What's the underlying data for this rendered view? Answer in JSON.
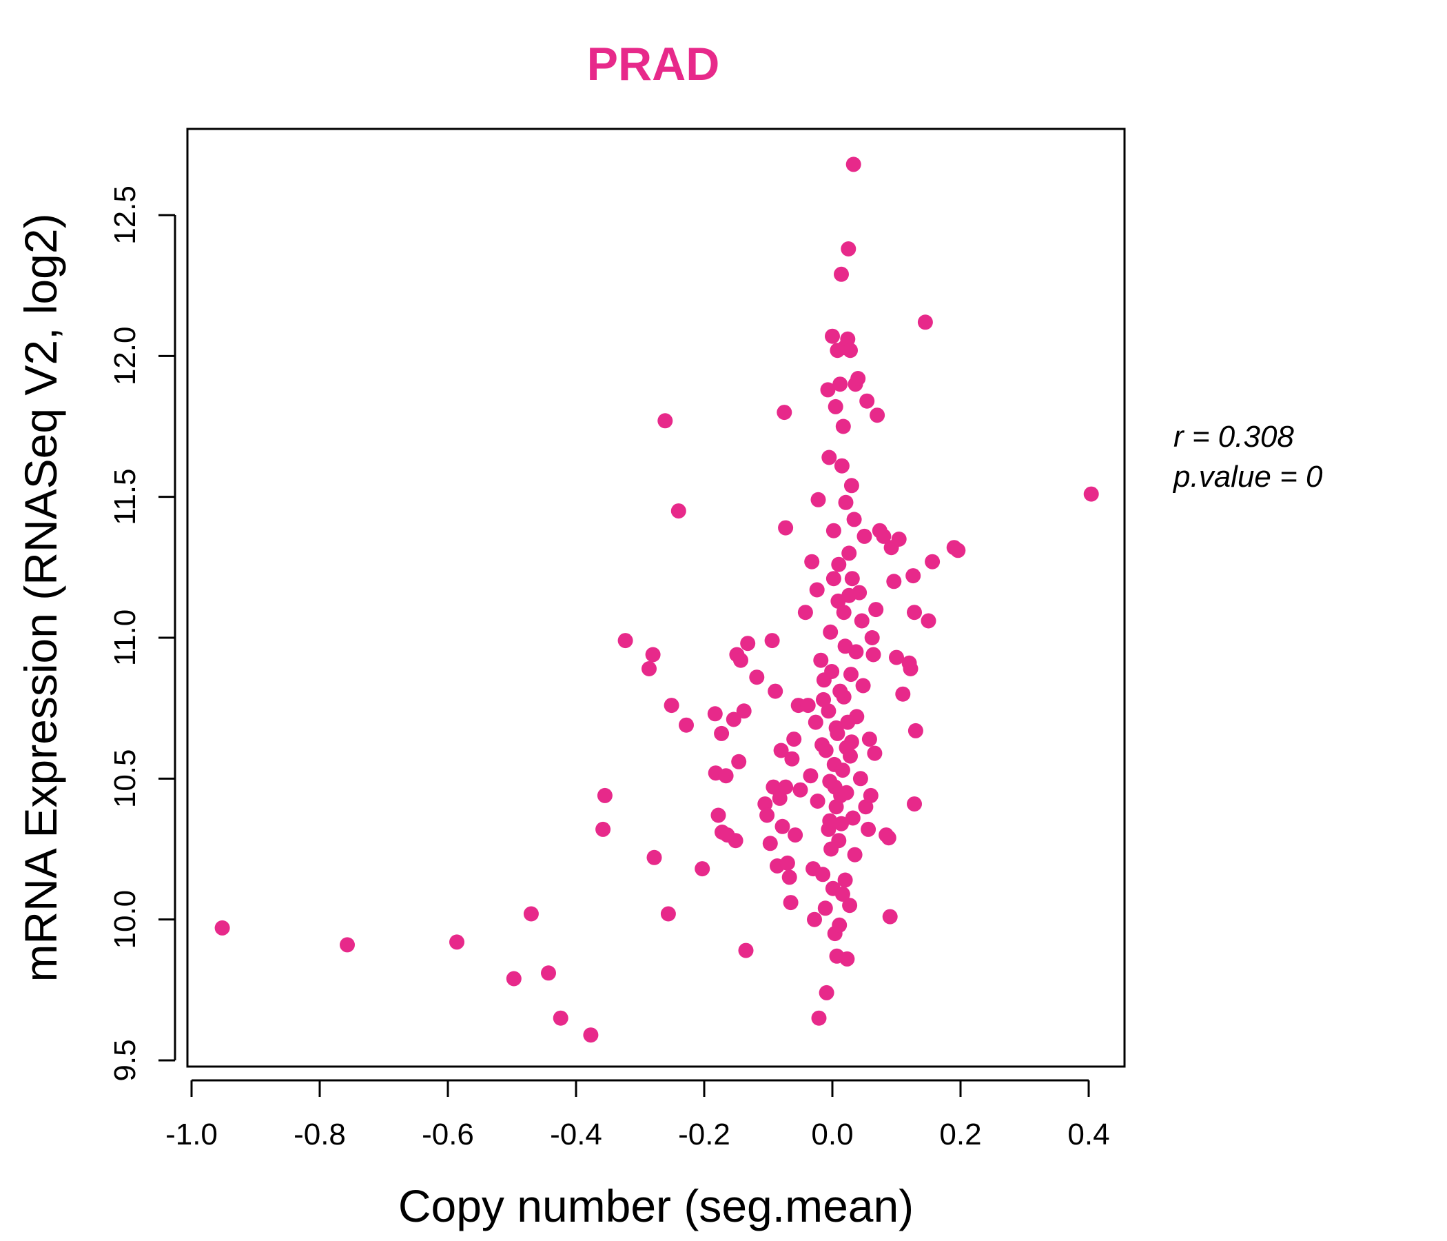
{
  "chart_data": {
    "type": "scatter",
    "title": "PRAD",
    "title_color": "#E7298A",
    "point_color": "#E7298A",
    "xlabel": "Copy number (seg.mean)",
    "ylabel": "mRNA Expression (RNASeq V2, log2)",
    "xlim": [
      -1.0,
      0.4
    ],
    "ylim": [
      9.5,
      12.5
    ],
    "xticks": [
      "-1.0",
      "-0.8",
      "-0.6",
      "-0.4",
      "-0.2",
      "0.0",
      "0.2",
      "0.4"
    ],
    "yticks": [
      "9.5",
      "10.0",
      "10.5",
      "11.0",
      "11.5",
      "12.0",
      "12.5"
    ],
    "annotations": {
      "r_line": "r = 0.308",
      "p_line": "p.value = 0"
    },
    "points": [
      [
        -0.952,
        9.97
      ],
      [
        -0.757,
        9.91
      ],
      [
        -0.586,
        9.92
      ],
      [
        -0.497,
        9.79
      ],
      [
        -0.47,
        10.02
      ],
      [
        -0.443,
        9.81
      ],
      [
        -0.424,
        9.65
      ],
      [
        -0.377,
        9.59
      ],
      [
        -0.355,
        10.44
      ],
      [
        -0.358,
        10.32
      ],
      [
        -0.323,
        10.99
      ],
      [
        -0.286,
        10.89
      ],
      [
        -0.28,
        10.94
      ],
      [
        -0.278,
        10.22
      ],
      [
        -0.261,
        11.77
      ],
      [
        -0.256,
        10.02
      ],
      [
        -0.251,
        10.76
      ],
      [
        -0.24,
        11.45
      ],
      [
        -0.228,
        10.69
      ],
      [
        -0.203,
        10.18
      ],
      [
        -0.183,
        10.73
      ],
      [
        -0.182,
        10.52
      ],
      [
        -0.178,
        10.37
      ],
      [
        -0.173,
        10.66
      ],
      [
        -0.172,
        10.31
      ],
      [
        -0.166,
        10.51
      ],
      [
        -0.164,
        10.3
      ],
      [
        -0.154,
        10.71
      ],
      [
        -0.151,
        10.28
      ],
      [
        -0.149,
        10.94
      ],
      [
        -0.146,
        10.56
      ],
      [
        -0.143,
        10.92
      ],
      [
        -0.138,
        10.74
      ],
      [
        -0.135,
        9.89
      ],
      [
        -0.132,
        10.98
      ],
      [
        -0.118,
        10.86
      ],
      [
        -0.105,
        10.41
      ],
      [
        -0.102,
        10.37
      ],
      [
        -0.097,
        10.27
      ],
      [
        -0.094,
        10.99
      ],
      [
        -0.092,
        10.47
      ],
      [
        -0.089,
        10.81
      ],
      [
        -0.086,
        10.19
      ],
      [
        -0.082,
        10.43
      ],
      [
        -0.08,
        10.6
      ],
      [
        -0.078,
        10.33
      ],
      [
        -0.075,
        11.8
      ],
      [
        -0.073,
        10.47
      ],
      [
        -0.073,
        11.39
      ],
      [
        -0.07,
        10.2
      ],
      [
        -0.067,
        10.15
      ],
      [
        -0.065,
        10.06
      ],
      [
        -0.063,
        10.57
      ],
      [
        -0.06,
        10.64
      ],
      [
        -0.058,
        10.3
      ],
      [
        -0.053,
        10.76
      ],
      [
        -0.05,
        10.46
      ],
      [
        -0.042,
        11.09
      ],
      [
        -0.038,
        10.76
      ],
      [
        -0.034,
        10.51
      ],
      [
        -0.032,
        11.27
      ],
      [
        -0.03,
        10.18
      ],
      [
        -0.028,
        10.0
      ],
      [
        -0.026,
        10.7
      ],
      [
        -0.024,
        11.17
      ],
      [
        -0.023,
        10.42
      ],
      [
        -0.022,
        11.49
      ],
      [
        -0.021,
        9.65
      ],
      [
        -0.018,
        10.92
      ],
      [
        -0.016,
        10.62
      ],
      [
        -0.015,
        10.16
      ],
      [
        -0.013,
        10.85
      ],
      [
        -0.011,
        10.04
      ],
      [
        -0.009,
        9.74
      ],
      [
        -0.007,
        11.88
      ],
      [
        -0.006,
        10.32
      ],
      [
        -0.005,
        11.64
      ],
      [
        -0.004,
        10.35
      ],
      [
        -0.003,
        11.02
      ],
      [
        -0.002,
        10.25
      ],
      [
        0.0,
        12.07
      ],
      [
        0.001,
        10.11
      ],
      [
        0.002,
        11.38
      ],
      [
        0.003,
        10.55
      ],
      [
        0.004,
        9.95
      ],
      [
        0.005,
        11.82
      ],
      [
        0.006,
        10.68
      ],
      [
        0.007,
        9.87
      ],
      [
        0.008,
        12.02
      ],
      [
        0.009,
        11.13
      ],
      [
        0.01,
        10.28
      ],
      [
        0.011,
        9.98
      ],
      [
        0.012,
        11.9
      ],
      [
        0.013,
        10.44
      ],
      [
        0.014,
        12.29
      ],
      [
        0.015,
        11.61
      ],
      [
        0.016,
        10.09
      ],
      [
        0.017,
        11.75
      ],
      [
        0.018,
        10.79
      ],
      [
        0.019,
        12.03
      ],
      [
        0.02,
        10.14
      ],
      [
        0.021,
        11.48
      ],
      [
        0.022,
        10.61
      ],
      [
        0.023,
        9.86
      ],
      [
        0.024,
        12.06
      ],
      [
        0.025,
        12.38
      ],
      [
        0.026,
        11.3
      ],
      [
        0.027,
        10.05
      ],
      [
        0.028,
        12.02
      ],
      [
        0.029,
        10.87
      ],
      [
        0.03,
        11.54
      ],
      [
        0.031,
        11.21
      ],
      [
        0.032,
        10.36
      ],
      [
        0.033,
        12.68
      ],
      [
        0.034,
        11.42
      ],
      [
        0.035,
        10.23
      ],
      [
        0.036,
        11.9
      ],
      [
        0.037,
        10.95
      ],
      [
        0.038,
        10.72
      ],
      [
        0.04,
        11.92
      ],
      [
        0.042,
        11.16
      ],
      [
        0.044,
        10.5
      ],
      [
        0.046,
        11.06
      ],
      [
        0.048,
        10.83
      ],
      [
        0.05,
        11.36
      ],
      [
        0.052,
        10.4
      ],
      [
        0.054,
        11.84
      ],
      [
        0.056,
        10.32
      ],
      [
        0.058,
        10.64
      ],
      [
        0.06,
        10.44
      ],
      [
        0.062,
        11.0
      ],
      [
        0.064,
        10.94
      ],
      [
        0.066,
        10.59
      ],
      [
        0.068,
        11.1
      ],
      [
        0.07,
        11.79
      ],
      [
        0.074,
        11.38
      ],
      [
        0.08,
        11.36
      ],
      [
        0.084,
        10.3
      ],
      [
        0.088,
        10.29
      ],
      [
        0.09,
        10.01
      ],
      [
        0.092,
        11.32
      ],
      [
        0.096,
        11.2
      ],
      [
        0.1,
        10.93
      ],
      [
        0.104,
        11.35
      ],
      [
        0.11,
        10.8
      ],
      [
        0.12,
        10.91
      ],
      [
        0.122,
        10.89
      ],
      [
        0.126,
        11.22
      ],
      [
        0.128,
        11.09
      ],
      [
        0.128,
        10.41
      ],
      [
        0.13,
        10.67
      ],
      [
        0.145,
        12.12
      ],
      [
        0.15,
        11.06
      ],
      [
        0.156,
        11.27
      ],
      [
        0.19,
        11.32
      ],
      [
        0.196,
        11.31
      ],
      [
        0.404,
        11.51
      ],
      [
        -0.01,
        10.6
      ],
      [
        -0.006,
        10.74
      ],
      [
        -0.001,
        10.88
      ],
      [
        0.004,
        10.47
      ],
      [
        0.008,
        10.66
      ],
      [
        0.012,
        10.81
      ],
      [
        0.016,
        10.53
      ],
      [
        0.02,
        10.97
      ],
      [
        0.024,
        10.7
      ],
      [
        0.028,
        10.58
      ],
      [
        0.002,
        11.21
      ],
      [
        0.01,
        11.26
      ],
      [
        0.018,
        11.09
      ],
      [
        0.026,
        11.15
      ],
      [
        -0.014,
        10.78
      ],
      [
        0.006,
        10.4
      ],
      [
        0.014,
        10.34
      ],
      [
        0.022,
        10.45
      ],
      [
        -0.004,
        10.49
      ],
      [
        0.03,
        10.63
      ]
    ]
  }
}
